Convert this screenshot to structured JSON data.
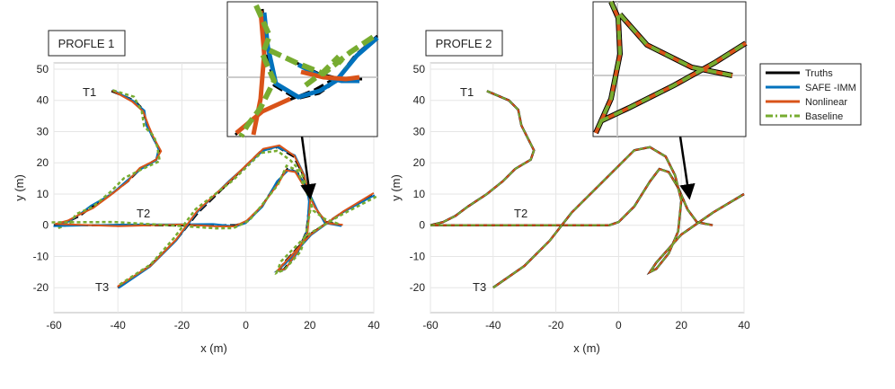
{
  "chart_data": [
    {
      "type": "line",
      "title": "PROFLE 1",
      "xlabel": "x (m)",
      "ylabel": "y (m)",
      "xlim": [
        -60,
        40
      ],
      "ylim": [
        -28,
        52
      ],
      "xticks": [
        -60,
        -40,
        -20,
        0,
        20,
        40
      ],
      "yticks": [
        -20,
        -10,
        0,
        10,
        20,
        30,
        40,
        50
      ],
      "grid": true,
      "annotations": [
        "T1",
        "T2",
        "T3"
      ],
      "series": [
        {
          "name": "Truths",
          "color": "#000000",
          "style": "solid",
          "tracks": [
            [
              [
                -42,
                43
              ],
              [
                -35,
                40
              ],
              [
                -32,
                37
              ],
              [
                -31,
                32
              ],
              [
                -29,
                28
              ],
              [
                -27,
                24
              ],
              [
                -28,
                21
              ],
              [
                -33,
                18
              ],
              [
                -37,
                14
              ],
              [
                -42,
                10
              ],
              [
                -48,
                6
              ],
              [
                -52,
                3
              ],
              [
                -56,
                1
              ],
              [
                -60,
                0
              ]
            ],
            [
              [
                -60,
                0
              ],
              [
                -40,
                0
              ],
              [
                -20,
                0
              ],
              [
                -10,
                0
              ],
              [
                -3,
                0
              ],
              [
                0,
                1
              ],
              [
                5,
                6
              ],
              [
                10,
                14
              ],
              [
                13,
                18
              ],
              [
                16,
                17
              ],
              [
                19,
                12
              ],
              [
                22,
                5
              ],
              [
                25,
                1
              ],
              [
                30,
                0
              ]
            ],
            [
              [
                -40,
                -20
              ],
              [
                -30,
                -13
              ],
              [
                -22,
                -5
              ],
              [
                -15,
                4
              ],
              [
                -5,
                14
              ],
              [
                5,
                24
              ],
              [
                10,
                25
              ],
              [
                15,
                22
              ],
              [
                18,
                16
              ],
              [
                20,
                8
              ],
              [
                19,
                -2
              ],
              [
                16,
                -9
              ],
              [
                12,
                -14
              ],
              [
                10,
                -15
              ],
              [
                12,
                -12
              ],
              [
                20,
                -3
              ],
              [
                30,
                4
              ],
              [
                40,
                10
              ]
            ]
          ]
        },
        {
          "name": "SAFE -IMM",
          "color": "#0072BD",
          "style": "solid"
        },
        {
          "name": "Nonlinear",
          "color": "#D95319",
          "style": "solid"
        },
        {
          "name": "Baseline",
          "color": "#77AC30",
          "style": "dashdot"
        }
      ]
    },
    {
      "type": "line",
      "title": "PROFLE 2",
      "xlabel": "x (m)",
      "ylabel": "y (m)",
      "xlim": [
        -60,
        40
      ],
      "ylim": [
        -28,
        52
      ],
      "xticks": [
        -60,
        -40,
        -20,
        0,
        20,
        40
      ],
      "yticks": [
        -20,
        -10,
        0,
        10,
        20,
        30,
        40,
        50
      ],
      "grid": true,
      "annotations": [
        "T1",
        "T2",
        "T3"
      ],
      "series": [
        {
          "name": "Truths",
          "color": "#000000",
          "style": "solid"
        },
        {
          "name": "SAFE -IMM",
          "color": "#0072BD",
          "style": "solid"
        },
        {
          "name": "Nonlinear",
          "color": "#D95319",
          "style": "solid"
        },
        {
          "name": "Baseline",
          "color": "#77AC30",
          "style": "dashdot"
        }
      ]
    }
  ],
  "legend": {
    "position": "right",
    "entries": [
      {
        "label": "Truths",
        "color": "#000000",
        "style": "solid"
      },
      {
        "label": "SAFE -IMM",
        "color": "#0072BD",
        "style": "solid"
      },
      {
        "label": "Nonlinear",
        "color": "#D95319",
        "style": "solid"
      },
      {
        "label": "Baseline",
        "color": "#77AC30",
        "style": "dashdot"
      }
    ]
  }
}
